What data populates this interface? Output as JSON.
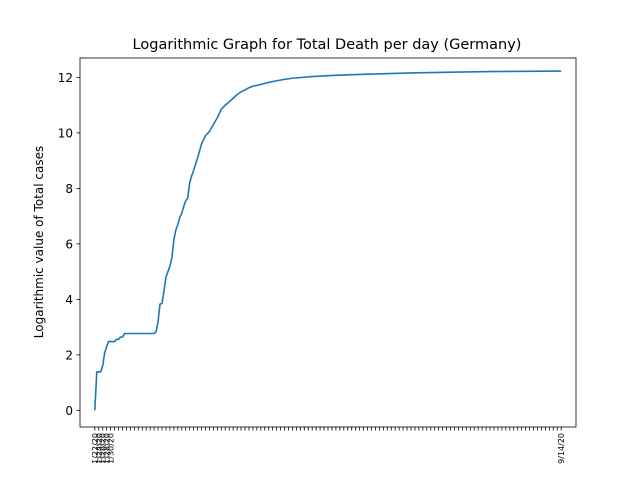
{
  "chart_data": {
    "type": "line",
    "title": "Logarithmic Graph for Total Death per day (Germany)",
    "xlabel": "",
    "ylabel": "Logarithmic value of Total cases",
    "ylim": [
      -0.6,
      12.7
    ],
    "yticks": [
      0,
      2,
      4,
      6,
      8,
      10,
      12
    ],
    "ytick_labels": [
      "0",
      "2",
      "4",
      "6",
      "8",
      "10",
      "12"
    ],
    "x_tick_labels_first": [
      "1/22/20",
      "1/24/20",
      "1/26/20",
      "1/28/20",
      "1/30/20"
    ],
    "x_tick_labels_last": [
      "9/14/20"
    ],
    "grid": false,
    "series": [
      {
        "name": "",
        "color": "#1f77b4",
        "points": [
          [
            0,
            0.0
          ],
          [
            1,
            1.39
          ],
          [
            3,
            1.39
          ],
          [
            4,
            1.61
          ],
          [
            5,
            2.08
          ],
          [
            6,
            2.3
          ],
          [
            7,
            2.48
          ],
          [
            9,
            2.48
          ],
          [
            10,
            2.48
          ],
          [
            11,
            2.56
          ],
          [
            12,
            2.56
          ],
          [
            13,
            2.64
          ],
          [
            14,
            2.64
          ],
          [
            15,
            2.77
          ],
          [
            30,
            2.77
          ],
          [
            31,
            2.83
          ],
          [
            32,
            3.2
          ],
          [
            33,
            3.83
          ],
          [
            34,
            3.85
          ],
          [
            35,
            4.3
          ],
          [
            36,
            4.8
          ],
          [
            37,
            5.0
          ],
          [
            38,
            5.2
          ],
          [
            39,
            5.5
          ],
          [
            40,
            6.15
          ],
          [
            41,
            6.5
          ],
          [
            42,
            6.7
          ],
          [
            43,
            6.95
          ],
          [
            44,
            7.1
          ],
          [
            45,
            7.35
          ],
          [
            46,
            7.55
          ],
          [
            47,
            7.65
          ],
          [
            48,
            8.2
          ],
          [
            49,
            8.45
          ],
          [
            50,
            8.65
          ],
          [
            52,
            9.1
          ],
          [
            54,
            9.6
          ],
          [
            56,
            9.9
          ],
          [
            58,
            10.05
          ],
          [
            60,
            10.3
          ],
          [
            62,
            10.55
          ],
          [
            64,
            10.85
          ],
          [
            66,
            11.0
          ],
          [
            68,
            11.12
          ],
          [
            70,
            11.25
          ],
          [
            72,
            11.38
          ],
          [
            74,
            11.48
          ],
          [
            76,
            11.55
          ],
          [
            78,
            11.63
          ],
          [
            80,
            11.68
          ],
          [
            84,
            11.75
          ],
          [
            88,
            11.82
          ],
          [
            92,
            11.88
          ],
          [
            96,
            11.93
          ],
          [
            100,
            11.97
          ],
          [
            110,
            12.03
          ],
          [
            120,
            12.07
          ],
          [
            130,
            12.1
          ],
          [
            140,
            12.12
          ],
          [
            160,
            12.16
          ],
          [
            180,
            12.19
          ],
          [
            200,
            12.21
          ],
          [
            236,
            12.23
          ]
        ]
      }
    ],
    "xlim": [
      -7.5,
      243.5
    ]
  }
}
